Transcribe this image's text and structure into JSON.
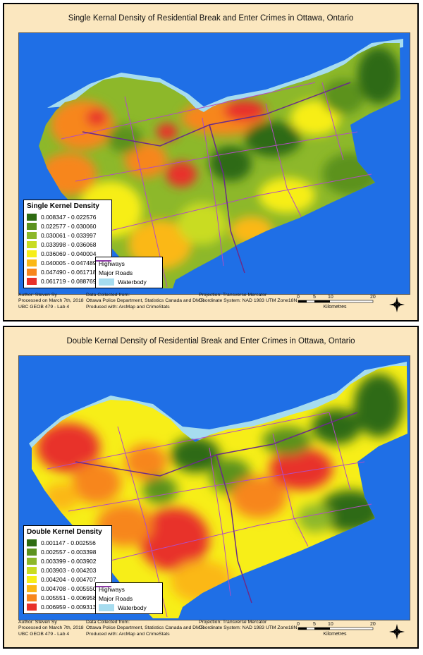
{
  "single": {
    "title": "Single Kernal Density of Residential Break and Enter Crimes in Ottawa, Ontario",
    "legend_title": "Single Kernel Density",
    "classes": [
      {
        "label": "0.008347 - 0.022576",
        "color": "#2e6b12"
      },
      {
        "label": "0.022577 - 0.030060",
        "color": "#5c921f"
      },
      {
        "label": "0.030061 - 0.033997",
        "color": "#8db82a"
      },
      {
        "label": "0.033998 - 0.036068",
        "color": "#c9dc22"
      },
      {
        "label": "0.036069 - 0.040004",
        "color": "#f7ee18"
      },
      {
        "label": "0.040005 - 0.047489",
        "color": "#fbb815"
      },
      {
        "label": "0.047490 - 0.061718",
        "color": "#f7861c"
      },
      {
        "label": "0.061719 - 0.088769",
        "color": "#e8312a"
      }
    ]
  },
  "double": {
    "title": "Double Kernal Density of Residential Break and Enter Crimes in Ottawa, Ontario",
    "legend_title": "Double Kernel Density",
    "classes": [
      {
        "label": "0.001147 - 0.002556",
        "color": "#2e6b12"
      },
      {
        "label": "0.002557 - 0.003398",
        "color": "#5c921f"
      },
      {
        "label": "0.003399 - 0.003902",
        "color": "#8db82a"
      },
      {
        "label": "0.003903 - 0.004203",
        "color": "#c9dc22"
      },
      {
        "label": "0.004204 - 0.004707",
        "color": "#f7ee18"
      },
      {
        "label": "0.004708 - 0.005550",
        "color": "#fbb815"
      },
      {
        "label": "0.005551 - 0.006958",
        "color": "#f7861c"
      },
      {
        "label": "0.006959 - 0.009313",
        "color": "#e8312a"
      }
    ]
  },
  "features": {
    "highways": "Highways",
    "major_roads": "Major Roads",
    "waterbody": "Waterbody"
  },
  "colors": {
    "water": "#1f6fe6",
    "shore": "#a6dcef",
    "highway": "#6a2c8a",
    "major_road": "#b24cc4",
    "panel_bg": "#fbe7bf"
  },
  "footer": {
    "author": "Author: Steven Sy",
    "processed": "Processed on March 7th, 2018",
    "course": "UBC GEOB 479 - Lab 4",
    "data_heading": "Data Collected from:",
    "data_sources": "Ottawa Police Department, Statistics Canada and DMTI",
    "produced": "Produced with: ArcMap and CrimeStats",
    "projection": "Projection: Transverse Mercator",
    "coord_system": "Coordinate System: NAD 1983 UTM Zone18N",
    "scale_ticks": [
      "0",
      "5",
      "10",
      "20"
    ],
    "scale_unit": "Kilometres",
    "north": "N"
  }
}
